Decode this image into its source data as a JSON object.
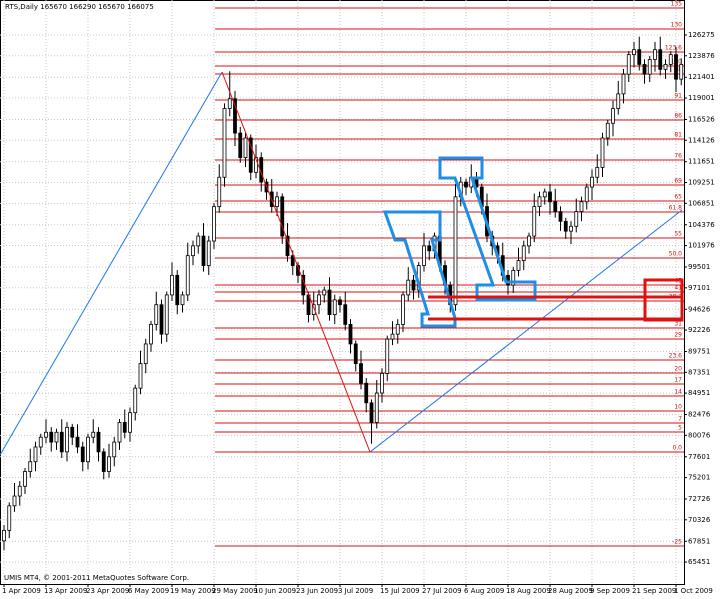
{
  "chart_data": {
    "type": "candlestick",
    "title": "RTS,Daily  165670 166290 165670 166075",
    "footer": "UMIS MT4, © 2001-2011 MetaQuotes Software Corp.",
    "categories": [
      "1 Apr 2009",
      null,
      null,
      null,
      null,
      null,
      null,
      null,
      "13 Apr 2009",
      null,
      null,
      null,
      null,
      null,
      null,
      null,
      "23 Apr 2009",
      null,
      null,
      null,
      null,
      null,
      null,
      null,
      "6 May 2009",
      null,
      null,
      null,
      null,
      null,
      null,
      null,
      "19 May 2009",
      null,
      null,
      null,
      null,
      null,
      null,
      null,
      "29 May 2009",
      null,
      null,
      null,
      null,
      null,
      null,
      null,
      "10 Jun 2009",
      null,
      null,
      null,
      null,
      null,
      null,
      null,
      "23 Jun 2009",
      null,
      null,
      null,
      null,
      null,
      null,
      null,
      "3 Jul 2009",
      null,
      null,
      null,
      null,
      null,
      null,
      null,
      "15 Jul 2009",
      null,
      null,
      null,
      null,
      null,
      null,
      null,
      "27 Jul 2009",
      null,
      null,
      null,
      null,
      null,
      null,
      null,
      "6 Aug 2009",
      null,
      null,
      null,
      null,
      null,
      null,
      null,
      "18 Aug 2009",
      null,
      null,
      null,
      null,
      null,
      null,
      null,
      "28 Aug 2009",
      null,
      null,
      null,
      null,
      null,
      null,
      null,
      "9 Sep 2009",
      null,
      null,
      null,
      null,
      null,
      null,
      null,
      "21 Sep 2009",
      null,
      null,
      null,
      null,
      null,
      null,
      null,
      "1 Oct 2009",
      null
    ],
    "open": [
      67900,
      69110,
      71940,
      73070,
      74200,
      75900,
      77030,
      78730,
      79860,
      80430,
      79300,
      80430,
      78170,
      81000,
      79860,
      78730,
      77030,
      79860,
      80430,
      78170,
      75900,
      77600,
      79300,
      81560,
      80430,
      82690,
      85520,
      88350,
      90620,
      92880,
      95150,
      91750,
      96280,
      98540,
      95150,
      96280,
      100810,
      101940,
      103070,
      99670,
      102500,
      106470,
      109860,
      117790,
      118920,
      114960,
      112130,
      114390,
      110430,
      112130,
      109300,
      108160,
      106470,
      107600,
      103070,
      100810,
      99670,
      98540,
      96280,
      94010,
      95150,
      96280,
      96840,
      94010,
      95710,
      95150,
      92880,
      90620,
      88350,
      86090,
      83830,
      81560,
      84960,
      87220,
      91180,
      91750,
      92880,
      96280,
      97980,
      96840,
      99670,
      101940,
      101370,
      103070,
      99670,
      97410,
      95150,
      107600,
      109300,
      108730,
      109860,
      108730,
      106470,
      103070,
      101940,
      100810,
      98540,
      97410,
      99110,
      100240,
      101940,
      103070,
      106470,
      107600,
      108160,
      107030,
      105900,
      104770,
      103640,
      104200,
      105900,
      107030,
      108730,
      109860,
      110990,
      114390,
      116090,
      117790,
      119480,
      121750,
      124010,
      124580,
      122880,
      121750,
      123450,
      124580,
      122310,
      122880,
      124010,
      121180
    ],
    "high": [
      69710,
      72340,
      74570,
      74800,
      76300,
      78530,
      79330,
      80260,
      81930,
      81030,
      80830,
      81930,
      81600,
      81400,
      81360,
      79330,
      80260,
      81930,
      81030,
      78570,
      79100,
      79900,
      81960,
      83060,
      83290,
      85920,
      89850,
      91220,
      93280,
      96650,
      95750,
      96680,
      100040,
      99140,
      96680,
      102310,
      102540,
      103470,
      104570,
      103100,
      106870,
      111360,
      118390,
      122090,
      119820,
      115660,
      114990,
      114790,
      113630,
      112730,
      109700,
      109660,
      108200,
      108000,
      104570,
      101410,
      100070,
      99140,
      96680,
      96650,
      96880,
      97240,
      98340,
      96310,
      96110,
      96650,
      93480,
      91020,
      89850,
      86690,
      84230,
      86460,
      87820,
      91580,
      93250,
      93480,
      96680,
      99480,
      98580,
      100070,
      103440,
      102540,
      103470,
      104570,
      100270,
      97810,
      109100,
      109900,
      109700,
      111360,
      110460,
      109130,
      107970,
      103670,
      102340,
      102310,
      99140,
      99510,
      101740,
      102540,
      103470,
      107970,
      108200,
      108560,
      109060,
      108530,
      106500,
      105170,
      104800,
      107400,
      107630,
      109130,
      110760,
      112490,
      114990,
      116490,
      118690,
      120980,
      122350,
      124410,
      125480,
      126080,
      123480,
      123850,
      125480,
      126080,
      123480,
      124410,
      124910,
      123580
    ],
    "low": [
      66800,
      68210,
      71240,
      71970,
      73300,
      75200,
      75930,
      77830,
      79160,
      78200,
      78400,
      77470,
      77070,
      78960,
      78030,
      75930,
      76130,
      79160,
      77070,
      75000,
      75200,
      76500,
      78400,
      79730,
      79330,
      81790,
      84820,
      87250,
      89720,
      92180,
      90650,
      90850,
      95580,
      94050,
      94250,
      95580,
      99710,
      101040,
      98970,
      98570,
      101600,
      105770,
      108760,
      116890,
      113460,
      111530,
      111030,
      109530,
      109730,
      108200,
      107260,
      105770,
      105370,
      102170,
      100110,
      98570,
      97640,
      95180,
      93110,
      93310,
      94050,
      95380,
      93310,
      92910,
      94250,
      92180,
      89520,
      87450,
      85390,
      82730,
      79100,
      80860,
      83860,
      86320,
      90480,
      90650,
      91980,
      95580,
      95740,
      95940,
      98970,
      100270,
      100470,
      98970,
      96310,
      94250,
      94450,
      106500,
      107830,
      108030,
      107630,
      105570,
      102370,
      100840,
      99910,
      97840,
      96310,
      96510,
      98410,
      99140,
      101040,
      102370,
      105370,
      106700,
      105530,
      105200,
      103670,
      102740,
      102140,
      103500,
      104800,
      106130,
      107230,
      109160,
      109890,
      113490,
      114590,
      117090,
      118380,
      120850,
      122510,
      122180,
      120650,
      120850,
      122050,
      121610,
      121210,
      121980,
      119680,
      120480
    ],
    "close": [
      69110,
      71940,
      73070,
      74200,
      75900,
      77030,
      78730,
      79860,
      80430,
      79300,
      80430,
      78170,
      81000,
      79860,
      78730,
      77030,
      79860,
      80430,
      78170,
      75900,
      77600,
      79300,
      81560,
      80430,
      82690,
      85520,
      88350,
      90620,
      92880,
      95150,
      91750,
      96280,
      98540,
      95150,
      96280,
      100810,
      101940,
      103070,
      99670,
      102500,
      106470,
      109860,
      117790,
      118920,
      114960,
      112130,
      114390,
      110430,
      112130,
      109300,
      108160,
      106470,
      107600,
      103070,
      100810,
      99670,
      98540,
      96280,
      94010,
      95150,
      96280,
      96840,
      94010,
      95710,
      95150,
      92880,
      90620,
      88350,
      86090,
      83830,
      81560,
      84960,
      87220,
      91180,
      91750,
      92880,
      96280,
      97980,
      96840,
      99670,
      101940,
      101370,
      103070,
      99670,
      97410,
      95150,
      107600,
      109300,
      108730,
      109860,
      108730,
      106470,
      103070,
      101940,
      100810,
      98540,
      97410,
      99110,
      100240,
      101940,
      103070,
      106470,
      107600,
      108160,
      107030,
      105900,
      104770,
      103640,
      104200,
      105900,
      107030,
      108730,
      109860,
      110990,
      114390,
      116090,
      117790,
      119480,
      121750,
      124010,
      124580,
      122880,
      121750,
      123450,
      124580,
      122310,
      122880,
      124010,
      121180,
      122880
    ],
    "ylim": [
      62920,
      130314
    ],
    "yticks": [
      126275,
      123876,
      121401,
      119001,
      116526,
      114126,
      111651,
      109251,
      106851,
      104376,
      101976,
      99501,
      97101,
      94626,
      92226,
      89751,
      87351,
      84951,
      82476,
      80076,
      77601,
      75201,
      72726,
      70326,
      67851,
      65451
    ],
    "grid": true,
    "fib_color": "#d81010",
    "fib_levels": [
      {
        "label": "135",
        "price": 129391
      },
      {
        "label": "130",
        "price": 126967
      },
      {
        "label": "123.6",
        "price": 124313
      },
      {
        "label": "110",
        "price": 122698
      },
      {
        "label": "98",
        "price": 121774
      },
      {
        "label": "91",
        "price": 118774
      },
      {
        "label": "86",
        "price": 116466
      },
      {
        "label": "81",
        "price": 114273
      },
      {
        "label": "76",
        "price": 111850
      },
      {
        "label": "69",
        "price": 108965
      },
      {
        "label": "65",
        "price": 107118
      },
      {
        "label": "61.8",
        "price": 105849
      },
      {
        "label": "55",
        "price": 102849
      },
      {
        "label": "50.0",
        "price": 100541
      },
      {
        "label": "45",
        "price": 97425
      },
      {
        "label": "41",
        "price": 96617
      },
      {
        "label": "38.2",
        "price": 95579
      },
      {
        "label": "31",
        "price": 92463
      },
      {
        "label": "29",
        "price": 91193
      },
      {
        "label": "23.6",
        "price": 88770
      },
      {
        "label": "20",
        "price": 87270
      },
      {
        "label": "17",
        "price": 86000
      },
      {
        "label": "14",
        "price": 84616
      },
      {
        "label": "10",
        "price": 82885
      },
      {
        "label": "7",
        "price": 81500
      },
      {
        "label": "5",
        "price": 80461
      },
      {
        "label": "0.0",
        "price": 78153
      },
      {
        "label": "-25",
        "price": 67306
      }
    ]
  }
}
